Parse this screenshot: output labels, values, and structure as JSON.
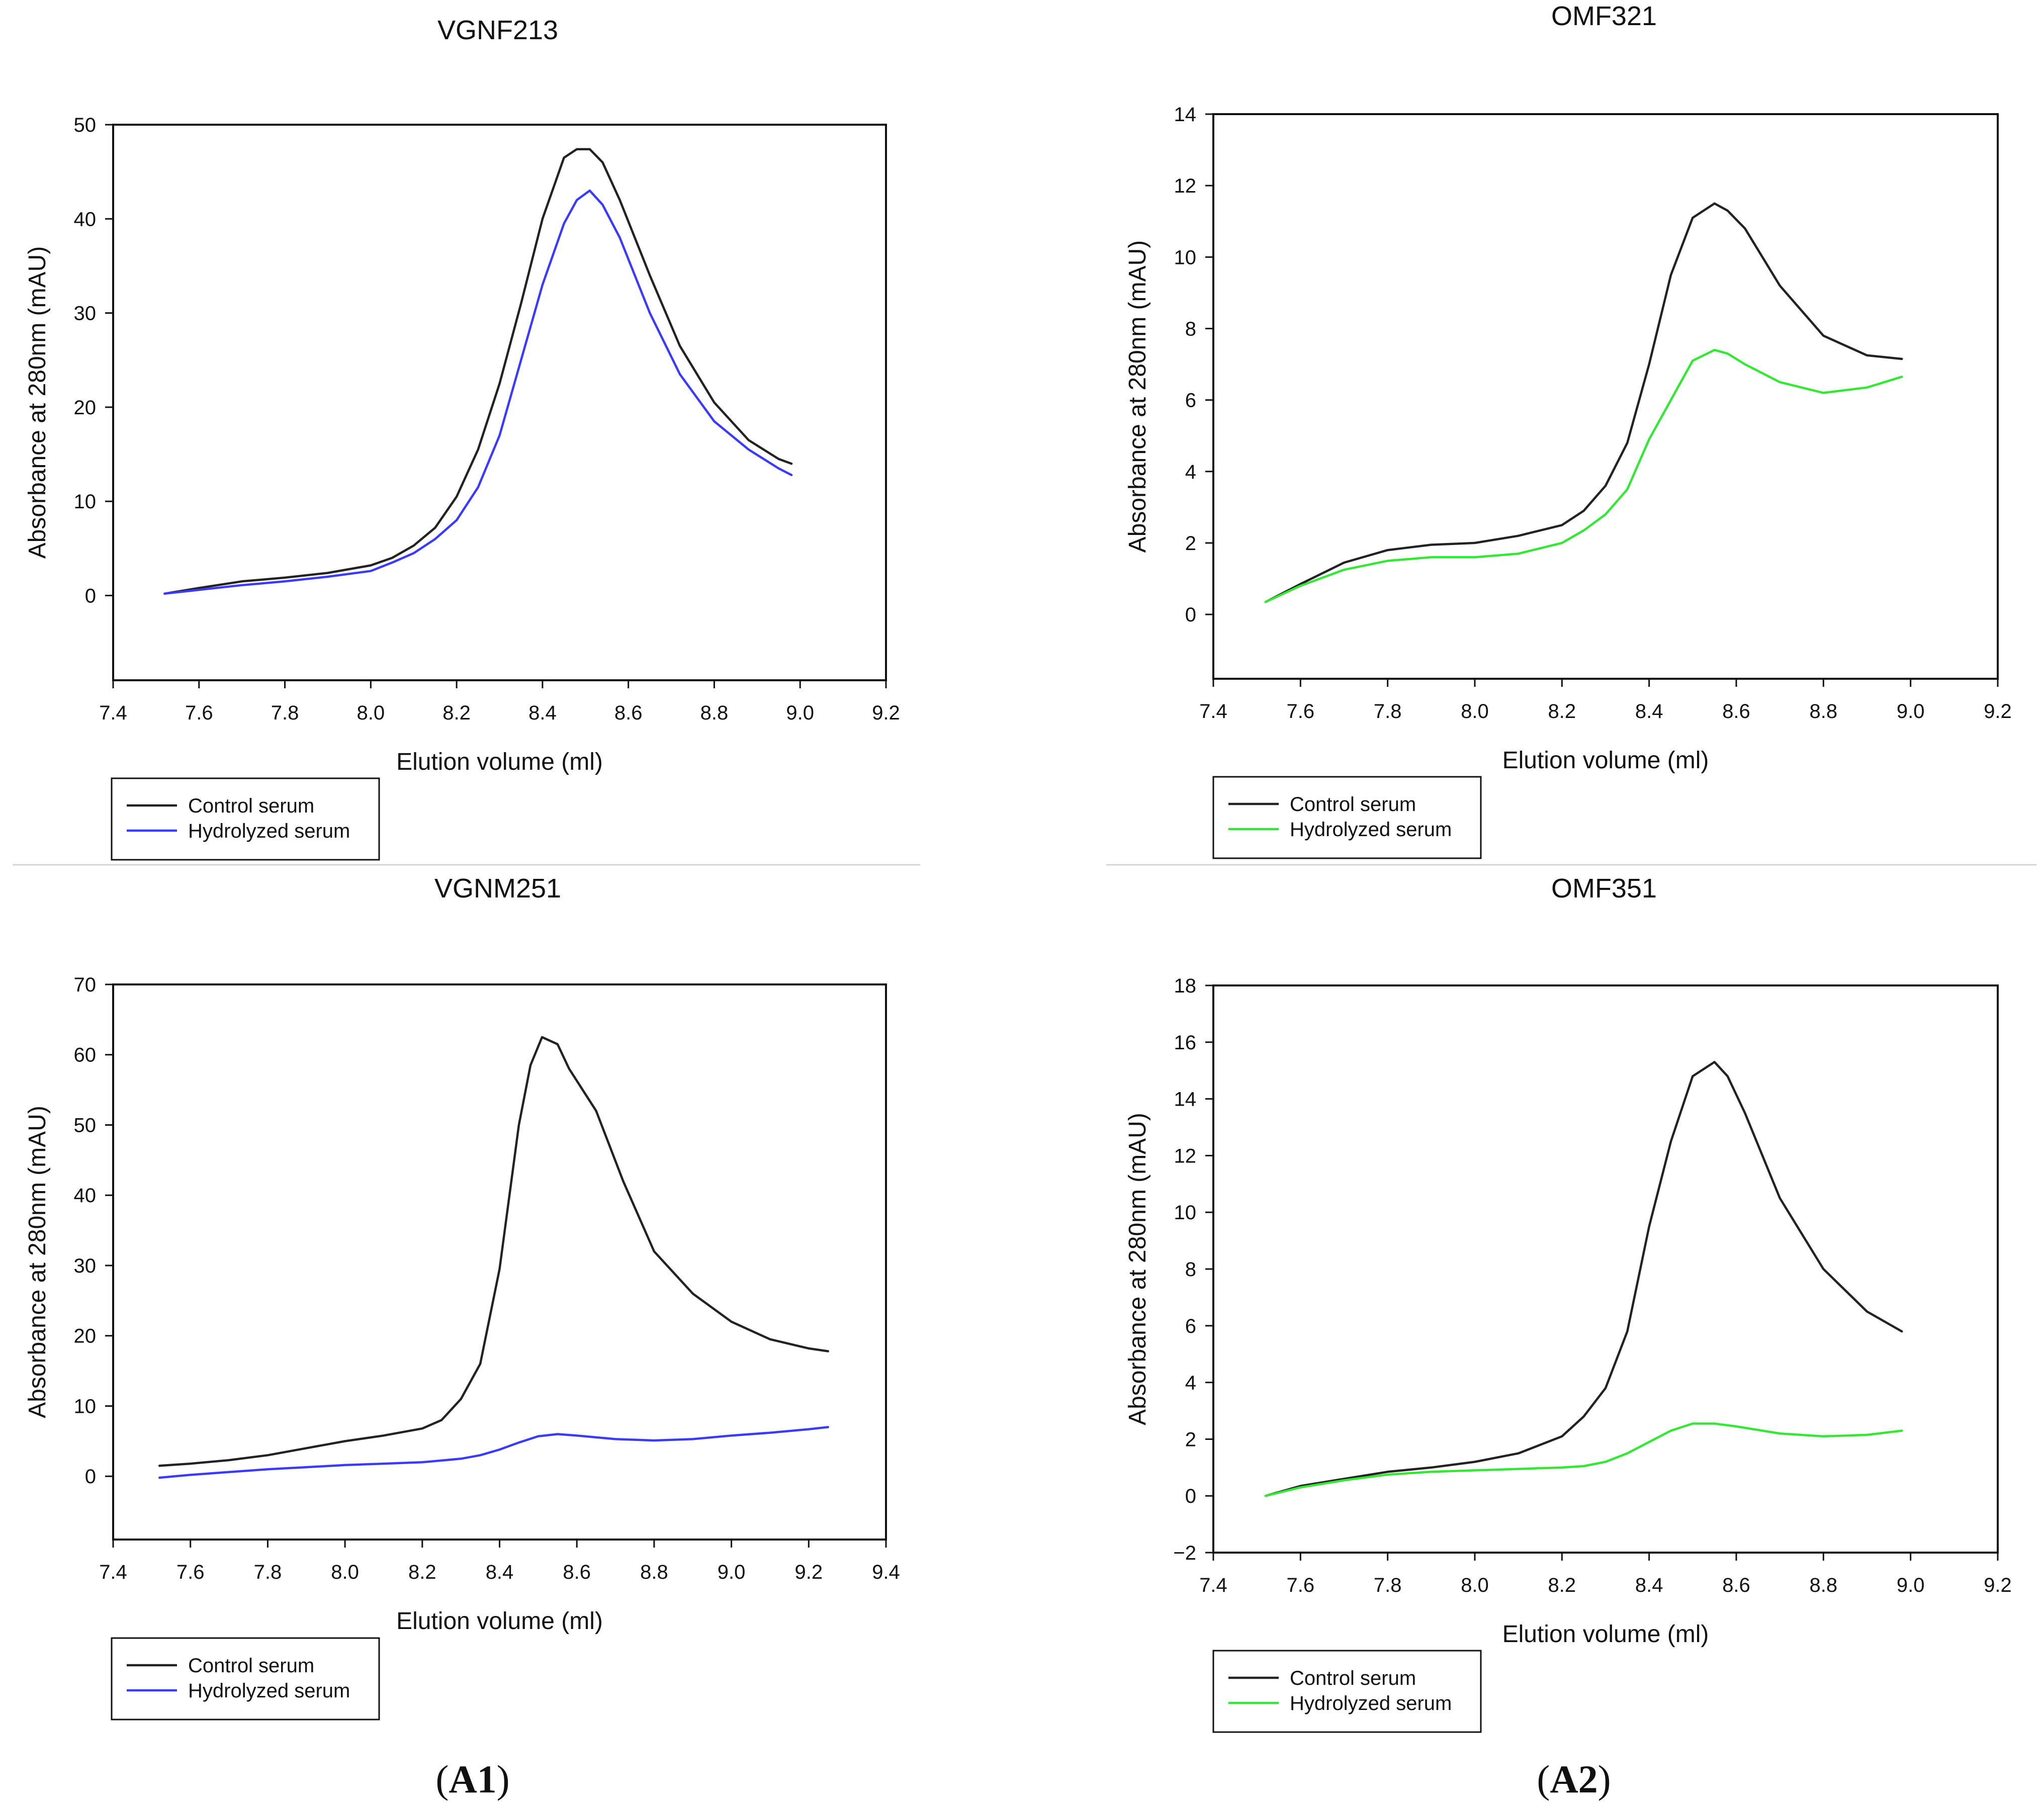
{
  "panel_labels": {
    "left": "A1",
    "right": "A2"
  },
  "chart_data": [
    {
      "type": "line",
      "title": "VGNF213",
      "xlabel": "Elution volume (ml)",
      "ylabel": "Absorbance at 280nm (mAU)",
      "xlim": [
        7.4,
        9.2
      ],
      "ylim": [
        -9,
        50
      ],
      "xticks": [
        7.4,
        7.6,
        7.8,
        8.0,
        8.2,
        8.4,
        8.6,
        8.8,
        9.0,
        9.2
      ],
      "xtick_labels": [
        "7.4",
        "7.6",
        "7.8",
        "8.0",
        "8.2",
        "8.4",
        "8.6",
        "8.8",
        "9.0",
        "9.2"
      ],
      "yticks": [
        0,
        10,
        20,
        30,
        40,
        50
      ],
      "ytick_labels": [
        "0",
        "10",
        "20",
        "30",
        "40",
        "50"
      ],
      "legend_position": "below-left",
      "series": [
        {
          "name": "Control serum",
          "color": "#222222",
          "x": [
            7.52,
            7.6,
            7.7,
            7.8,
            7.9,
            8.0,
            8.05,
            8.1,
            8.15,
            8.2,
            8.25,
            8.3,
            8.35,
            8.4,
            8.45,
            8.48,
            8.51,
            8.54,
            8.58,
            8.65,
            8.72,
            8.8,
            8.88,
            8.95,
            8.98
          ],
          "y": [
            0.2,
            0.8,
            1.5,
            1.9,
            2.4,
            3.2,
            4.0,
            5.3,
            7.2,
            10.5,
            15.5,
            22.5,
            31.0,
            40.0,
            46.5,
            47.4,
            47.4,
            46.0,
            42.0,
            34.0,
            26.5,
            20.5,
            16.5,
            14.5,
            14.0
          ]
        },
        {
          "name": "Hydrolyzed serum",
          "color": "#3a3aff",
          "x": [
            7.52,
            7.6,
            7.7,
            7.8,
            7.9,
            8.0,
            8.05,
            8.1,
            8.15,
            8.2,
            8.25,
            8.3,
            8.35,
            8.4,
            8.45,
            8.48,
            8.51,
            8.54,
            8.58,
            8.65,
            8.72,
            8.8,
            8.88,
            8.95,
            8.98
          ],
          "y": [
            0.2,
            0.6,
            1.1,
            1.5,
            2.0,
            2.6,
            3.5,
            4.5,
            6.0,
            8.0,
            11.5,
            17.0,
            25.0,
            33.0,
            39.5,
            42.0,
            43.0,
            41.5,
            38.0,
            30.0,
            23.5,
            18.5,
            15.5,
            13.5,
            12.8
          ]
        }
      ]
    },
    {
      "type": "line",
      "title": "OMF321",
      "xlabel": "Elution volume (ml)",
      "ylabel": "Absorbance at 280nm (mAU)",
      "xlim": [
        7.4,
        9.2
      ],
      "ylim": [
        -1.8,
        14
      ],
      "xticks": [
        7.4,
        7.6,
        7.8,
        8.0,
        8.2,
        8.4,
        8.6,
        8.8,
        9.0,
        9.2
      ],
      "xtick_labels": [
        "7.4",
        "7.6",
        "7.8",
        "8.0",
        "8.2",
        "8.4",
        "8.6",
        "8.8",
        "9.0",
        "9.2"
      ],
      "yticks": [
        0,
        2,
        4,
        6,
        8,
        10,
        12,
        14
      ],
      "ytick_labels": [
        "0",
        "2",
        "4",
        "6",
        "8",
        "10",
        "12",
        "14"
      ],
      "legend_position": "below-left",
      "series": [
        {
          "name": "Control serum",
          "color": "#222222",
          "x": [
            7.52,
            7.6,
            7.7,
            7.8,
            7.9,
            8.0,
            8.1,
            8.2,
            8.25,
            8.3,
            8.35,
            8.4,
            8.45,
            8.5,
            8.55,
            8.58,
            8.62,
            8.7,
            8.8,
            8.9,
            8.98
          ],
          "y": [
            0.35,
            0.85,
            1.45,
            1.8,
            1.95,
            2.0,
            2.2,
            2.5,
            2.9,
            3.6,
            4.8,
            7.0,
            9.5,
            11.1,
            11.5,
            11.3,
            10.8,
            9.2,
            7.8,
            7.25,
            7.15
          ]
        },
        {
          "name": "Hydrolyzed serum",
          "color": "#33e833",
          "x": [
            7.52,
            7.6,
            7.7,
            7.8,
            7.9,
            8.0,
            8.1,
            8.2,
            8.25,
            8.3,
            8.35,
            8.4,
            8.45,
            8.5,
            8.55,
            8.58,
            8.62,
            8.7,
            8.8,
            8.9,
            8.98
          ],
          "y": [
            0.35,
            0.8,
            1.25,
            1.5,
            1.6,
            1.6,
            1.7,
            2.0,
            2.35,
            2.8,
            3.5,
            4.9,
            6.0,
            7.1,
            7.4,
            7.3,
            7.0,
            6.5,
            6.2,
            6.35,
            6.65
          ]
        }
      ]
    },
    {
      "type": "line",
      "title": "VGNM251",
      "xlabel": "Elution volume (ml)",
      "ylabel": "Absorbance at 280nm (mAU)",
      "xlim": [
        7.4,
        9.4
      ],
      "ylim": [
        -9,
        70
      ],
      "xticks": [
        7.4,
        7.6,
        7.8,
        8.0,
        8.2,
        8.4,
        8.6,
        8.8,
        9.0,
        9.2,
        9.4
      ],
      "xtick_labels": [
        "7.4",
        "7.6",
        "7.8",
        "8.0",
        "8.2",
        "8.4",
        "8.6",
        "8.8",
        "9.0",
        "9.2",
        "9.4"
      ],
      "yticks": [
        0,
        10,
        20,
        30,
        40,
        50,
        60,
        70
      ],
      "ytick_labels": [
        "0",
        "10",
        "20",
        "30",
        "40",
        "50",
        "60",
        "70"
      ],
      "legend_position": "below-left",
      "series": [
        {
          "name": "Control serum",
          "color": "#222222",
          "x": [
            7.52,
            7.6,
            7.7,
            7.8,
            7.9,
            8.0,
            8.1,
            8.2,
            8.25,
            8.3,
            8.35,
            8.4,
            8.45,
            8.48,
            8.51,
            8.55,
            8.58,
            8.65,
            8.72,
            8.8,
            8.9,
            9.0,
            9.1,
            9.2,
            9.25
          ],
          "y": [
            1.5,
            1.8,
            2.3,
            3.0,
            4.0,
            5.0,
            5.8,
            6.8,
            8.0,
            11.0,
            16.0,
            29.5,
            50.0,
            58.5,
            62.5,
            61.5,
            58.0,
            52.0,
            42.0,
            32.0,
            26.0,
            22.0,
            19.5,
            18.2,
            17.8
          ]
        },
        {
          "name": "Hydrolyzed serum",
          "color": "#3a3aff",
          "x": [
            7.52,
            7.6,
            7.7,
            7.8,
            7.9,
            8.0,
            8.1,
            8.2,
            8.3,
            8.35,
            8.4,
            8.45,
            8.5,
            8.55,
            8.6,
            8.7,
            8.8,
            8.9,
            9.0,
            9.1,
            9.2,
            9.25
          ],
          "y": [
            -0.2,
            0.2,
            0.6,
            1.0,
            1.3,
            1.6,
            1.8,
            2.0,
            2.5,
            3.0,
            3.8,
            4.8,
            5.7,
            6.0,
            5.8,
            5.3,
            5.1,
            5.3,
            5.8,
            6.2,
            6.7,
            7.0
          ]
        }
      ]
    },
    {
      "type": "line",
      "title": "OMF351",
      "xlabel": "Elution volume (ml)",
      "ylabel": "Absorbance at 280nm (mAU)",
      "xlim": [
        7.4,
        9.2
      ],
      "ylim": [
        -2,
        18
      ],
      "xticks": [
        7.4,
        7.6,
        7.8,
        8.0,
        8.2,
        8.4,
        8.6,
        8.8,
        9.0,
        9.2
      ],
      "xtick_labels": [
        "7.4",
        "7.6",
        "7.8",
        "8.0",
        "8.2",
        "8.4",
        "8.6",
        "8.8",
        "9.0",
        "9.2"
      ],
      "yticks": [
        -2,
        0,
        2,
        4,
        6,
        8,
        10,
        12,
        14,
        16,
        18
      ],
      "ytick_labels": [
        "−2",
        "0",
        "2",
        "4",
        "6",
        "8",
        "10",
        "12",
        "14",
        "16",
        "18"
      ],
      "legend_position": "below-left",
      "series": [
        {
          "name": "Control serum",
          "color": "#222222",
          "x": [
            7.52,
            7.6,
            7.7,
            7.8,
            7.9,
            8.0,
            8.1,
            8.2,
            8.25,
            8.3,
            8.35,
            8.4,
            8.45,
            8.5,
            8.55,
            8.58,
            8.62,
            8.7,
            8.8,
            8.9,
            8.98
          ],
          "y": [
            0.0,
            0.35,
            0.6,
            0.85,
            1.0,
            1.2,
            1.5,
            2.1,
            2.8,
            3.8,
            5.8,
            9.5,
            12.5,
            14.8,
            15.3,
            14.8,
            13.5,
            10.5,
            8.0,
            6.5,
            5.8
          ]
        },
        {
          "name": "Hydrolyzed serum",
          "color": "#33e833",
          "x": [
            7.52,
            7.6,
            7.7,
            7.8,
            7.9,
            8.0,
            8.1,
            8.2,
            8.25,
            8.3,
            8.35,
            8.4,
            8.45,
            8.5,
            8.55,
            8.6,
            8.7,
            8.8,
            8.9,
            8.98
          ],
          "y": [
            0.0,
            0.3,
            0.55,
            0.75,
            0.85,
            0.9,
            0.95,
            1.0,
            1.05,
            1.2,
            1.5,
            1.9,
            2.3,
            2.55,
            2.55,
            2.45,
            2.2,
            2.1,
            2.15,
            2.3
          ]
        }
      ]
    }
  ]
}
